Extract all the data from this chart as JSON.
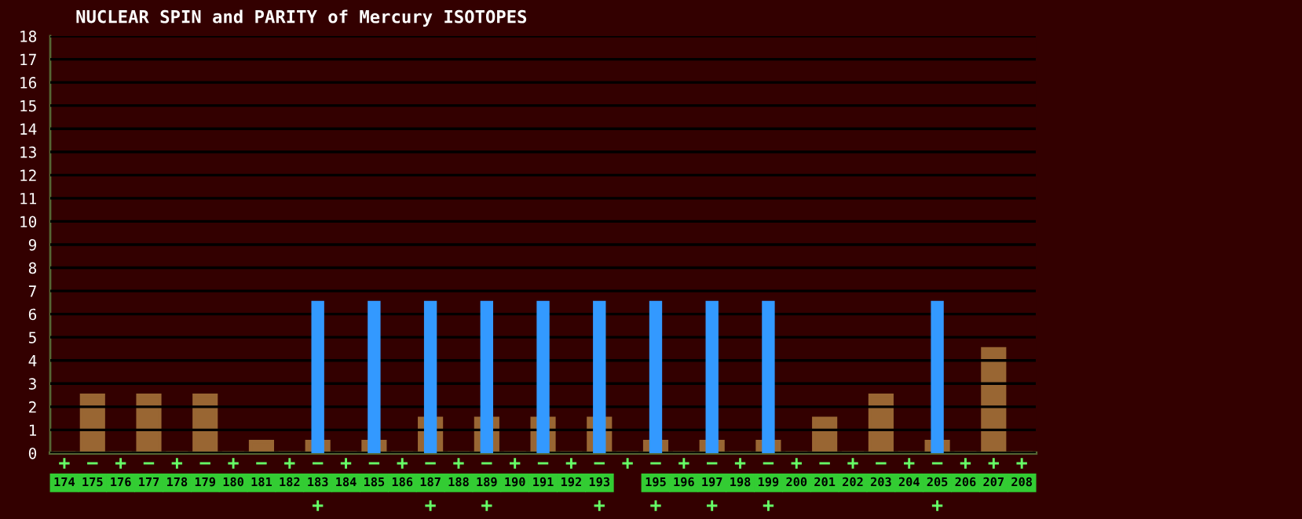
{
  "chart_data": {
    "type": "bar",
    "title": "NUCLEAR SPIN and PARITY of Mercury ISOTOPES",
    "categories": [
      "174",
      "175",
      "176",
      "177",
      "178",
      "179",
      "180",
      "181",
      "182",
      "183",
      "184",
      "185",
      "186",
      "187",
      "188",
      "189",
      "190",
      "191",
      "192",
      "193",
      null,
      "195",
      "196",
      "197",
      "198",
      "199",
      "200",
      "201",
      "202",
      "203",
      "204",
      "205",
      "206",
      "207",
      "208"
    ],
    "series": [
      {
        "type": "bar",
        "color": "#996633",
        "values": [
          0,
          2.5,
          0,
          2.5,
          0,
          2.5,
          0,
          0.5,
          0,
          0.5,
          0,
          0.5,
          0,
          1.5,
          0,
          1.5,
          0,
          1.5,
          0,
          1.5,
          0,
          0.5,
          0,
          0.5,
          0,
          0.5,
          0,
          1.5,
          0,
          2.5,
          0,
          0.5,
          0,
          4.5,
          0
        ],
        "value_labels": [
          "+",
          "−",
          "+",
          "−",
          "+",
          "−",
          "+",
          "−",
          "+",
          "−",
          "+",
          "−",
          "+",
          "−",
          "+",
          "−",
          "+",
          "−",
          "+",
          "−",
          "+",
          "−",
          "+",
          "−",
          "+",
          "−",
          "+",
          "−",
          "+",
          "−",
          "+",
          "−",
          "+",
          "+",
          "+"
        ]
      },
      {
        "type": "bar",
        "color": "#3399ff",
        "values": [
          null,
          null,
          null,
          null,
          null,
          null,
          null,
          null,
          null,
          6.5,
          null,
          6.5,
          null,
          6.5,
          null,
          6.5,
          null,
          6.5,
          null,
          6.5,
          null,
          6.5,
          null,
          6.5,
          null,
          6.5,
          null,
          null,
          null,
          null,
          null,
          6.5,
          null,
          null,
          null
        ],
        "value_labels": [
          null,
          null,
          null,
          null,
          null,
          null,
          null,
          null,
          null,
          "+",
          null,
          null,
          null,
          "+",
          null,
          "+",
          null,
          null,
          null,
          "+",
          null,
          "+",
          null,
          "+",
          null,
          "+",
          null,
          null,
          null,
          null,
          null,
          "+",
          null,
          null,
          null
        ]
      }
    ],
    "ylim": [
      0,
      18
    ],
    "yticks": [
      0,
      1,
      2,
      3,
      4,
      5,
      6,
      7,
      8,
      9,
      10,
      11,
      12,
      13,
      14,
      15,
      16,
      17,
      18
    ],
    "grid": "y"
  }
}
